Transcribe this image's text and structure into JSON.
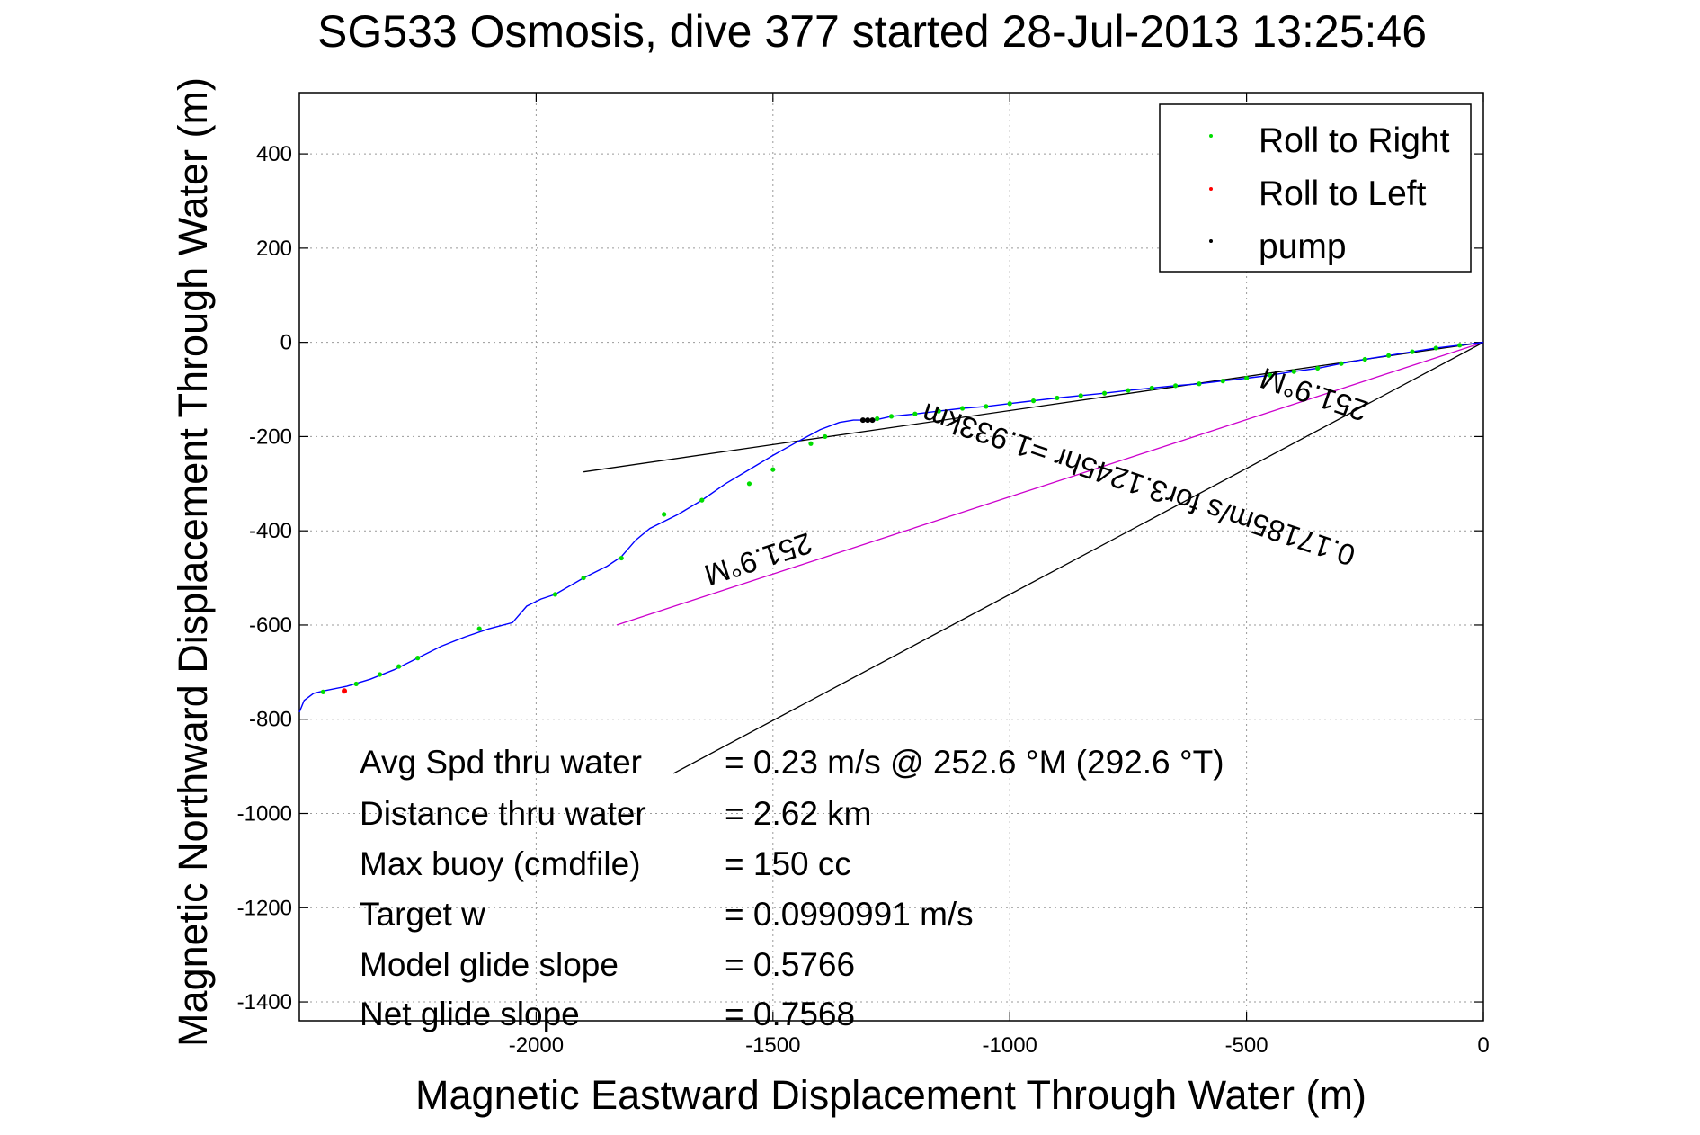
{
  "chart_data": {
    "type": "line",
    "title": "SG533 Osmosis, dive 377 started 28-Jul-2013 13:25:46",
    "xlabel": "Magnetic Eastward Displacement Through Water (m)",
    "ylabel": "Magnetic Northward Displacement Through Water (m)",
    "xlim": [
      -2500,
      0
    ],
    "ylim": [
      -1440,
      530
    ],
    "grid": true,
    "x_ticks": [
      -2000,
      -1500,
      -1000,
      -500,
      0
    ],
    "y_ticks": [
      400,
      200,
      0,
      -200,
      -400,
      -600,
      -800,
      -1000,
      -1200,
      -1400
    ],
    "legend_position": "top-right",
    "legend": [
      {
        "label": "Roll to Right",
        "color": "#00dd00"
      },
      {
        "label": "Roll to Left",
        "color": "#ff0000"
      },
      {
        "label": "pump",
        "color": "#000000"
      }
    ],
    "track": {
      "color": "#0000ff",
      "x": [
        -2500,
        -2490,
        -2470,
        -2450,
        -2400,
        -2350,
        -2300,
        -2250,
        -2200,
        -2150,
        -2100,
        -2050,
        -2020,
        -1990,
        -1960,
        -1900,
        -1850,
        -1820,
        -1790,
        -1760,
        -1700,
        -1650,
        -1600,
        -1550,
        -1500,
        -1450,
        -1400,
        -1360,
        -1330,
        -1300,
        -1285,
        -1250,
        -1200,
        -1150,
        -1100,
        -1050,
        -1000,
        -950,
        -900,
        -850,
        -800,
        -750,
        -700,
        -650,
        -600,
        -550,
        -500,
        -450,
        -400,
        -350,
        -300,
        -250,
        -200,
        -150,
        -100,
        -50,
        0
      ],
      "y": [
        -785,
        -760,
        -745,
        -740,
        -730,
        -715,
        -695,
        -670,
        -645,
        -625,
        -608,
        -595,
        -560,
        -545,
        -535,
        -500,
        -475,
        -455,
        -420,
        -395,
        -365,
        -335,
        -300,
        -270,
        -240,
        -212,
        -185,
        -170,
        -165,
        -165,
        -165,
        -157,
        -152,
        -146,
        -140,
        -136,
        -130,
        -124,
        -118,
        -113,
        -108,
        -102,
        -97,
        -92,
        -88,
        -82,
        -76,
        -70,
        -62,
        -55,
        -45,
        -36,
        -28,
        -20,
        -12,
        -6,
        0
      ]
    },
    "roll_right_points": {
      "x": [
        -2450,
        -2380,
        -2330,
        -2290,
        -2250,
        -2120,
        -1960,
        -1900,
        -1820,
        -1730,
        -1650,
        -1550,
        -1500,
        -1420,
        -1390,
        -1300,
        -1280,
        -1250,
        -1200,
        -1150,
        -1100,
        -1050,
        -1000,
        -950,
        -900,
        -850,
        -800,
        -750,
        -700,
        -650,
        -600,
        -550,
        -500,
        -450,
        -400,
        -350,
        -300,
        -250,
        -200,
        -150,
        -100,
        -50
      ],
      "y": [
        -742,
        -725,
        -705,
        -688,
        -670,
        -608,
        -535,
        -500,
        -458,
        -365,
        -335,
        -300,
        -270,
        -215,
        -200,
        -165,
        -162,
        -157,
        -152,
        -146,
        -140,
        -136,
        -130,
        -124,
        -118,
        -113,
        -108,
        -102,
        -97,
        -92,
        -88,
        -82,
        -76,
        -70,
        -62,
        -55,
        -45,
        -36,
        -28,
        -20,
        -12,
        -6
      ]
    },
    "roll_left_points": {
      "x": [
        -2405
      ],
      "y": [
        -740
      ]
    },
    "pump_points": {
      "x": [
        -1310,
        -1300,
        -1290
      ],
      "y": [
        -165,
        -165,
        -165
      ]
    },
    "reference_lines": [
      {
        "name": "heading",
        "color": "#000000",
        "x": [
          0,
          -1900
        ],
        "y": [
          0,
          -275
        ]
      },
      {
        "name": "current",
        "color": "#cc00cc",
        "x": [
          0,
          -1830
        ],
        "y": [
          0,
          -600
        ]
      },
      {
        "name": "average",
        "color": "#000000",
        "x": [
          0,
          -1710
        ],
        "y": [
          0,
          -915
        ]
      }
    ],
    "annotations": [
      {
        "text": "251.9°M",
        "rotation_deg": 198.5
      },
      {
        "text": "0.17185m/s for3.1245hr =1.933km",
        "rotation_deg": 198.5
      },
      {
        "text": "251.9°M",
        "rotation_deg": 162
      }
    ],
    "stats": [
      {
        "label": "Avg Spd thru water",
        "value": "=  0.23 m/s @ 252.6 °M (292.6 °T)"
      },
      {
        "label": "Distance thru water",
        "value": "=  2.62 km"
      },
      {
        "label": "Max buoy (cmdfile)",
        "value": "= 150 cc"
      },
      {
        "label": "Target w",
        "value": "= 0.0990991 m/s"
      },
      {
        "label": "Model glide slope",
        "value": "= 0.5766"
      },
      {
        "label": "Net glide slope",
        "value": "= 0.7568"
      }
    ]
  }
}
